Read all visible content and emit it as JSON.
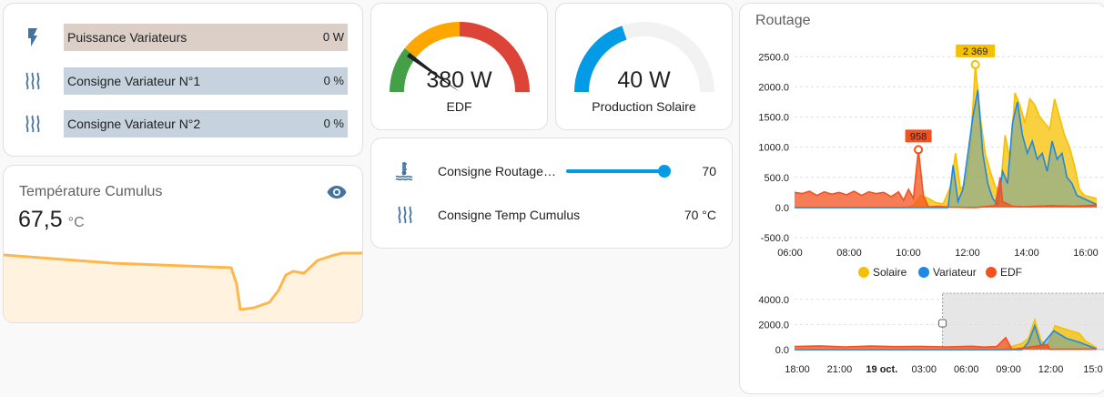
{
  "colors": {
    "primary": "#039be5",
    "solaire": "#f5c000",
    "variateur": "#1e88e5",
    "edf": "#f4511e",
    "gauge_green": "#43a047",
    "gauge_yellow": "#ffa600",
    "gauge_red": "#db4437",
    "temp_line": "#ffb74d"
  },
  "power_card": {
    "rows": [
      {
        "icon": "flash-icon",
        "label": "Puissance Variateurs",
        "value": "0 W"
      },
      {
        "icon": "heat-waves-icon",
        "label": "Consigne Variateur N°1",
        "value": "0 %"
      },
      {
        "icon": "heat-waves-icon",
        "label": "Consigne Variateur N°2",
        "value": "0 %"
      }
    ]
  },
  "temp_card": {
    "title": "Température Cumulus",
    "value": "67,5",
    "unit": "°C",
    "icon": "eye-icon"
  },
  "gauge_edf": {
    "value": "380 W",
    "name": "EDF"
  },
  "gauge_solar": {
    "value": "40 W",
    "name": "Production Solaire"
  },
  "settings_card": {
    "rows": [
      {
        "icon": "water-boiler-icon",
        "label": "Consigne Routage…",
        "value": "70"
      },
      {
        "icon": "heat-waves-icon",
        "label": "Consigne Temp Cumulus",
        "value": "70 °C"
      }
    ],
    "slider_level": 1.0
  },
  "chart_card": {
    "title": "Routage"
  },
  "chart_data": [
    {
      "type": "area",
      "y_ticks": [
        "2500.0",
        "2000.0",
        "1500.0",
        "1000.0",
        "500.0",
        "0.0",
        "-500.0"
      ],
      "x_ticks": [
        "06:00",
        "08:00",
        "10:00",
        "12:00",
        "14:00",
        "16:00"
      ],
      "ylim": [
        -500,
        2700
      ],
      "x_hours": [
        4.7,
        16.9
      ],
      "series": [
        {
          "name": "Solaire",
          "points": [
            [
              4.7,
              0
            ],
            [
              9.2,
              0
            ],
            [
              9.5,
              30
            ],
            [
              9.8,
              200
            ],
            [
              10.1,
              150
            ],
            [
              10.4,
              80
            ],
            [
              10.7,
              60
            ],
            [
              11.0,
              350
            ],
            [
              11.2,
              900
            ],
            [
              11.4,
              300
            ],
            [
              11.6,
              400
            ],
            [
              11.8,
              1000
            ],
            [
              12.0,
              2369
            ],
            [
              12.2,
              1500
            ],
            [
              12.4,
              900
            ],
            [
              12.6,
              600
            ],
            [
              12.8,
              350
            ],
            [
              13.0,
              250
            ],
            [
              13.2,
              1200
            ],
            [
              13.4,
              800
            ],
            [
              13.6,
              1900
            ],
            [
              13.8,
              1700
            ],
            [
              14.0,
              1400
            ],
            [
              14.2,
              1800
            ],
            [
              14.4,
              1700
            ],
            [
              14.6,
              1500
            ],
            [
              14.8,
              1400
            ],
            [
              15.0,
              1300
            ],
            [
              15.2,
              1800
            ],
            [
              15.4,
              1500
            ],
            [
              15.6,
              1200
            ],
            [
              15.8,
              1000
            ],
            [
              16.0,
              700
            ],
            [
              16.2,
              300
            ],
            [
              16.4,
              200
            ],
            [
              16.9,
              150
            ]
          ]
        },
        {
          "name": "Variateur",
          "points": [
            [
              4.7,
              0
            ],
            [
              10.9,
              0
            ],
            [
              11.1,
              700
            ],
            [
              11.3,
              100
            ],
            [
              11.5,
              300
            ],
            [
              11.7,
              900
            ],
            [
              11.9,
              1500
            ],
            [
              12.1,
              1950
            ],
            [
              12.3,
              900
            ],
            [
              12.5,
              400
            ],
            [
              12.7,
              150
            ],
            [
              12.9,
              50
            ],
            [
              13.1,
              600
            ],
            [
              13.3,
              400
            ],
            [
              13.5,
              1400
            ],
            [
              13.7,
              1750
            ],
            [
              13.9,
              1200
            ],
            [
              14.1,
              900
            ],
            [
              14.3,
              1100
            ],
            [
              14.5,
              800
            ],
            [
              14.7,
              900
            ],
            [
              14.9,
              600
            ],
            [
              15.1,
              1100
            ],
            [
              15.3,
              800
            ],
            [
              15.5,
              900
            ],
            [
              15.7,
              500
            ],
            [
              15.9,
              400
            ],
            [
              16.1,
              200
            ],
            [
              16.9,
              50
            ]
          ]
        },
        {
          "name": "EDF",
          "points": [
            [
              4.7,
              250
            ],
            [
              5.0,
              230
            ],
            [
              5.3,
              270
            ],
            [
              5.6,
              200
            ],
            [
              5.9,
              260
            ],
            [
              6.2,
              220
            ],
            [
              6.5,
              250
            ],
            [
              6.8,
              210
            ],
            [
              7.1,
              270
            ],
            [
              7.4,
              200
            ],
            [
              7.7,
              260
            ],
            [
              8.0,
              230
            ],
            [
              8.3,
              250
            ],
            [
              8.6,
              180
            ],
            [
              8.9,
              260
            ],
            [
              9.1,
              120
            ],
            [
              9.3,
              300
            ],
            [
              9.5,
              150
            ],
            [
              9.7,
              958
            ],
            [
              9.9,
              200
            ],
            [
              10.1,
              10
            ],
            [
              10.5,
              20
            ],
            [
              11.0,
              5
            ],
            [
              12.0,
              0
            ],
            [
              12.8,
              30
            ],
            [
              13.0,
              500
            ],
            [
              13.1,
              100
            ],
            [
              13.5,
              20
            ],
            [
              14.0,
              10
            ],
            [
              15.0,
              30
            ],
            [
              16.0,
              20
            ],
            [
              16.9,
              40
            ]
          ]
        }
      ],
      "markers": [
        {
          "series": "Solaire",
          "label": "2 369",
          "x": 12.0,
          "y": 2369
        },
        {
          "series": "EDF",
          "label": "958",
          "x": 9.7,
          "y": 958
        }
      ],
      "legend": "bottom"
    },
    {
      "type": "area",
      "y_ticks": [
        "4000.0",
        "2000.0",
        "0.0"
      ],
      "x_ticks": [
        "18:00",
        "21:00",
        "19 oct.",
        "03:00",
        "06:00",
        "09:00",
        "12:00",
        "15:0"
      ],
      "ylim": [
        0,
        4200
      ],
      "x_hours": [
        -7.0,
        16.9
      ],
      "series": [
        {
          "name": "Solaire",
          "points": [
            [
              -7,
              0
            ],
            [
              9.5,
              0
            ],
            [
              10.0,
              200
            ],
            [
              11.0,
              500
            ],
            [
              11.5,
              900
            ],
            [
              12.0,
              2369
            ],
            [
              12.5,
              700
            ],
            [
              13.0,
              300
            ],
            [
              13.6,
              1900
            ],
            [
              14.5,
              1600
            ],
            [
              15.5,
              1300
            ],
            [
              16.0,
              700
            ],
            [
              16.9,
              150
            ]
          ]
        },
        {
          "name": "Variateur",
          "points": [
            [
              -7,
              0
            ],
            [
              11.0,
              0
            ],
            [
              11.5,
              600
            ],
            [
              12.0,
              1900
            ],
            [
              12.5,
              300
            ],
            [
              13.5,
              1500
            ],
            [
              14.5,
              900
            ],
            [
              15.5,
              600
            ],
            [
              16.9,
              50
            ]
          ]
        },
        {
          "name": "EDF",
          "points": [
            [
              -7,
              250
            ],
            [
              -5,
              300
            ],
            [
              -3,
              220
            ],
            [
              -1,
              280
            ],
            [
              1,
              240
            ],
            [
              3,
              260
            ],
            [
              5,
              220
            ],
            [
              7,
              270
            ],
            [
              8,
              200
            ],
            [
              9,
              250
            ],
            [
              9.7,
              958
            ],
            [
              10.2,
              20
            ],
            [
              13,
              400
            ],
            [
              13.2,
              30
            ],
            [
              16.9,
              40
            ]
          ]
        }
      ],
      "selection": {
        "from_hour": 4.7,
        "to_hour": 16.9
      }
    }
  ]
}
